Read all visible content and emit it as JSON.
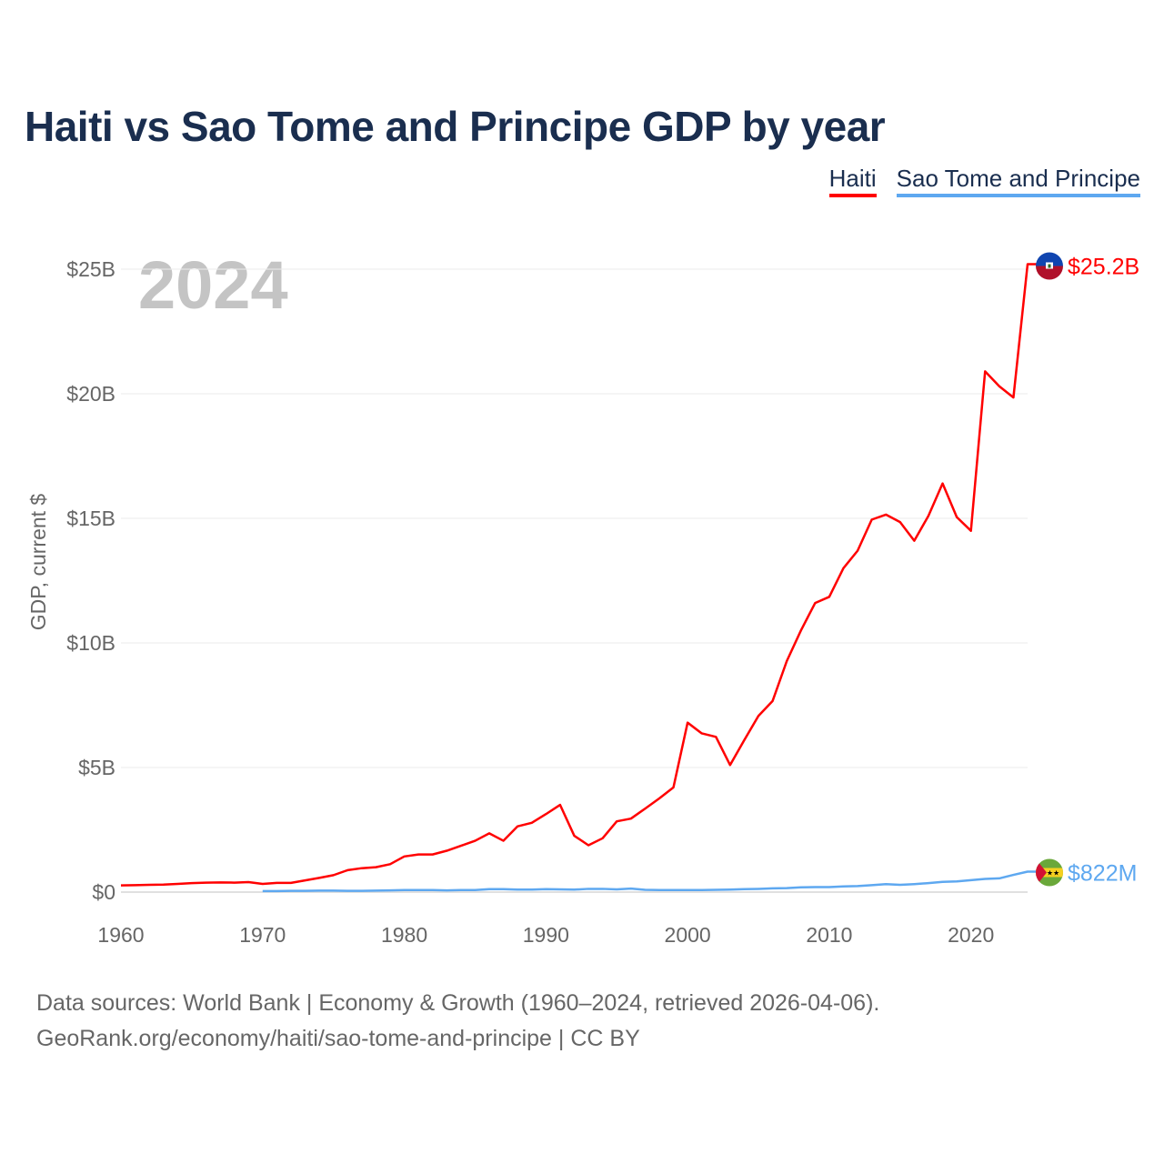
{
  "title": "Haiti vs Sao Tome and Principe GDP by year",
  "footer": {
    "line1": "Data sources: World Bank | Economy & Growth (1960–2024, retrieved 2026-04-06).",
    "line2": "GeoRank.org/economy/haiti/sao-tome-and-principe | CC BY"
  },
  "chart_data": {
    "type": "line",
    "title": "Haiti vs Sao Tome and Principe GDP by year",
    "xlabel": "",
    "ylabel": "GDP, current $",
    "year_label": "2024",
    "xlim": [
      1960,
      2024
    ],
    "ylim": [
      0,
      25
    ],
    "x_ticks": [
      1960,
      1970,
      1980,
      1990,
      2000,
      2010,
      2020
    ],
    "y_ticks": [
      0,
      5,
      10,
      15,
      20,
      25
    ],
    "y_tick_labels": [
      "$0",
      "$5B",
      "$10B",
      "$15B",
      "$20B",
      "$25B"
    ],
    "grid": true,
    "legend_position": "top-right",
    "series": [
      {
        "name": "Haiti",
        "color": "#ff0000",
        "flag": "haiti-flag",
        "end_label": "$25.2B",
        "start_year": 1960,
        "values": [
          0.27,
          0.28,
          0.29,
          0.3,
          0.33,
          0.36,
          0.38,
          0.39,
          0.38,
          0.4,
          0.33,
          0.37,
          0.37,
          0.47,
          0.57,
          0.68,
          0.88,
          0.96,
          1.0,
          1.12,
          1.43,
          1.51,
          1.51,
          1.66,
          1.86,
          2.06,
          2.36,
          2.06,
          2.64,
          2.78,
          3.13,
          3.5,
          2.26,
          1.88,
          2.16,
          2.84,
          2.95,
          3.35,
          3.76,
          4.2,
          6.8,
          6.37,
          6.23,
          5.1,
          6.1,
          7.07,
          7.67,
          9.27,
          10.5,
          11.6,
          11.85,
          13.0,
          13.7,
          14.95,
          15.15,
          14.85,
          14.1,
          15.1,
          16.4,
          15.05,
          14.5,
          20.9,
          20.3,
          19.85,
          25.2
        ]
      },
      {
        "name": "Sao Tome and Principe",
        "color": "#5ea8f0",
        "flag": "sao-tome-flag",
        "end_label": "$822M",
        "start_year": 1970,
        "values": [
          0.04,
          0.04,
          0.05,
          0.05,
          0.06,
          0.06,
          0.05,
          0.05,
          0.06,
          0.07,
          0.08,
          0.08,
          0.08,
          0.07,
          0.08,
          0.08,
          0.12,
          0.12,
          0.1,
          0.1,
          0.12,
          0.11,
          0.1,
          0.13,
          0.13,
          0.11,
          0.14,
          0.09,
          0.08,
          0.08,
          0.08,
          0.08,
          0.09,
          0.1,
          0.12,
          0.13,
          0.15,
          0.16,
          0.19,
          0.2,
          0.2,
          0.23,
          0.24,
          0.28,
          0.32,
          0.29,
          0.32,
          0.36,
          0.41,
          0.43,
          0.48,
          0.53,
          0.55,
          0.69,
          0.822
        ]
      }
    ]
  }
}
